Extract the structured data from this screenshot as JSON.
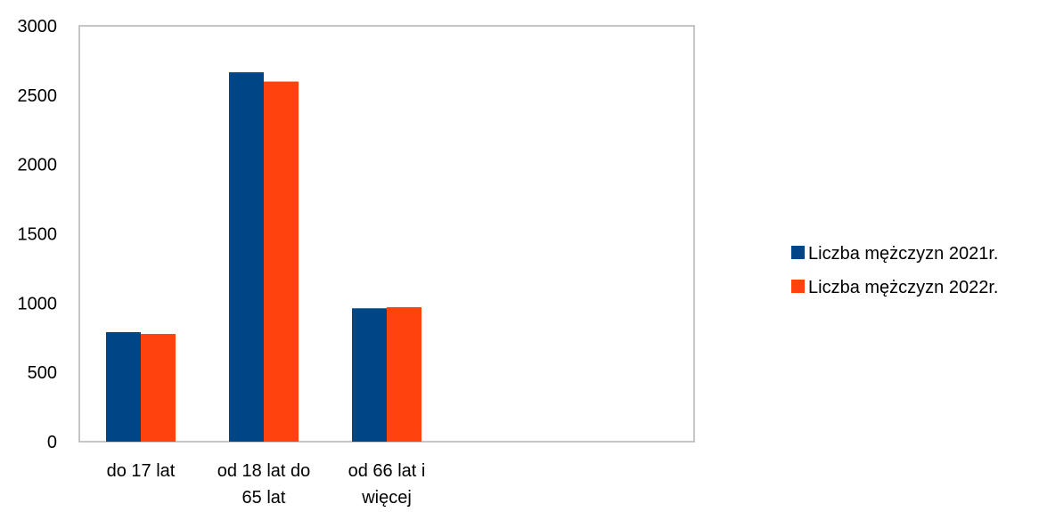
{
  "chart_data": {
    "type": "bar",
    "categories": [
      [
        "do 17 lat"
      ],
      [
        "od 18 lat do",
        "65 lat"
      ],
      [
        "od 66 lat i",
        "więcej"
      ]
    ],
    "series": [
      {
        "name": "Liczba mężczyzn  2021r.",
        "values": [
          790,
          2665,
          962
        ],
        "color": "#004586"
      },
      {
        "name": "Liczba mężczyzn  2022r.",
        "values": [
          777,
          2598,
          970
        ],
        "color": "#ff420e"
      }
    ],
    "ylim": [
      0,
      3000
    ],
    "yticks": [
      "0",
      "500",
      "1000",
      "1500",
      "2000",
      "2500",
      "3000"
    ],
    "grid": false,
    "legend": "right",
    "title": "",
    "xlabel": "",
    "ylabel": ""
  }
}
